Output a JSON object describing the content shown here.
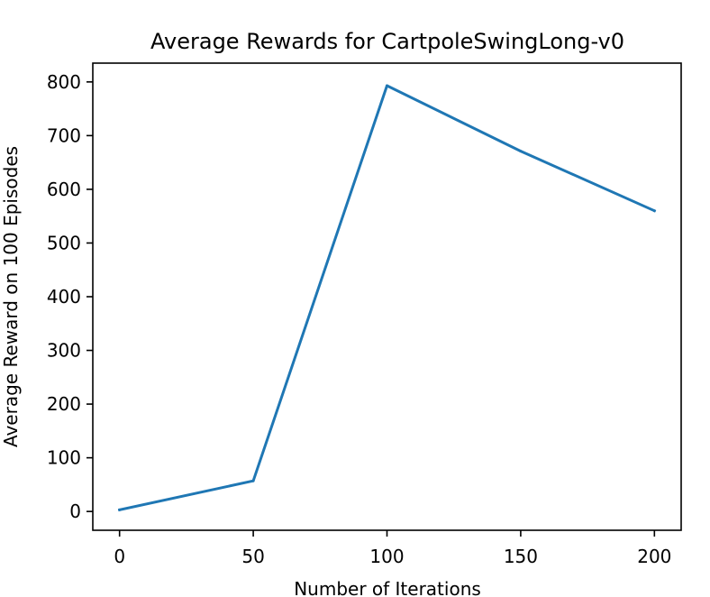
{
  "chart_data": {
    "type": "line",
    "title": "Average Rewards for CartpoleSwingLong-v0",
    "xlabel": "Number of Iterations",
    "ylabel": "Average Reward on 100 Episodes",
    "xlim": [
      -10,
      210
    ],
    "ylim": [
      -35,
      835
    ],
    "xticks": [
      0,
      50,
      100,
      150,
      200
    ],
    "yticks": [
      0,
      100,
      200,
      300,
      400,
      500,
      600,
      700,
      800
    ],
    "grid": false,
    "legend": "none",
    "series": [
      {
        "x": [
          0,
          50,
          100,
          150,
          200
        ],
        "values": [
          3,
          57,
          793,
          671,
          560
        ],
        "color": "#1f77b4"
      }
    ]
  }
}
